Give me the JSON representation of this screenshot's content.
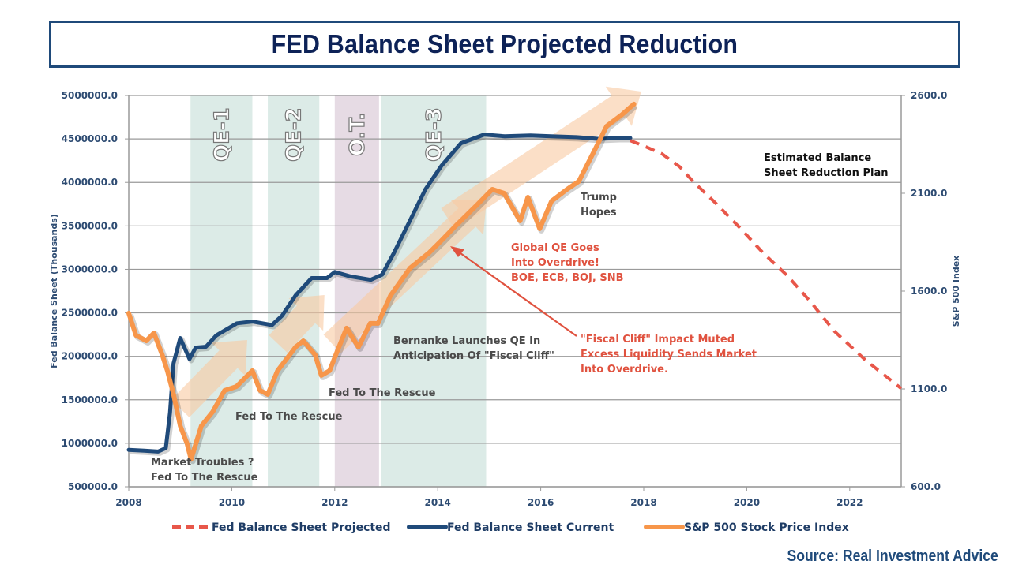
{
  "title": "FED Balance Sheet Projected Reduction",
  "source": "Source: Real Investment Advice",
  "colors": {
    "balance_current": "#1f4a7a",
    "balance_projected": "#e8574a",
    "sp500": "#f7964a",
    "qe_band": "#dcebe7",
    "ot_band": "#e6dbe4",
    "axis_text": "#2d4b72",
    "title_text": "#0d2257",
    "annotation_red": "#e0523f"
  },
  "chart_data": {
    "type": "line",
    "title": "FED Balance Sheet Projected Reduction",
    "xlabel": "",
    "ylabel": "Fed Balance Sheet (Thousands)",
    "y2label": "S&P 500 Index",
    "xlim": [
      2008,
      2023
    ],
    "ylim": [
      500000,
      5000000
    ],
    "y2lim": [
      600,
      2600
    ],
    "grid": true,
    "legend_position": "bottom",
    "x_ticks": [
      "2008",
      "2010",
      "2012",
      "2014",
      "2016",
      "2018",
      "2020",
      "2022"
    ],
    "x_tick_values": [
      2008,
      2010,
      2012,
      2014,
      2016,
      2018,
      2020,
      2022
    ],
    "y_ticks": [
      "5000000.0",
      "4500000.0",
      "4000000.0",
      "3500000.0",
      "3000000.0",
      "2500000.0",
      "2000000.0",
      "1500000.0",
      "1000000.0",
      "500000.0"
    ],
    "y_tick_values": [
      5000000,
      4500000,
      4000000,
      3500000,
      3000000,
      2500000,
      2000000,
      1500000,
      1000000,
      500000
    ],
    "y2_ticks": [
      "2600.0",
      "2100.0",
      "1600.0",
      "1100.0",
      "600.0"
    ],
    "y2_tick_values": [
      2600,
      2100,
      1600,
      1100,
      600
    ],
    "bands": [
      {
        "label": "QE-1",
        "start": 2009.2,
        "end": 2010.4,
        "kind": "qe"
      },
      {
        "label": "QE-2",
        "start": 2010.7,
        "end": 2011.7,
        "kind": "qe"
      },
      {
        "label": "O.T.",
        "start": 2012.0,
        "end": 2012.86,
        "kind": "ot"
      },
      {
        "label": "QE-3",
        "start": 2012.9,
        "end": 2014.94,
        "kind": "qe"
      }
    ],
    "series": [
      {
        "name": "Fed Balance Sheet Projected",
        "axis": "left",
        "style": "dashed",
        "x": [
          2017.74,
          2018.0,
          2018.35,
          2018.7,
          2018.96,
          2019.4,
          2019.88,
          2020.3,
          2020.8,
          2021.25,
          2021.7,
          2022.3,
          2023.0
        ],
        "y": [
          4480000,
          4420000,
          4330000,
          4180000,
          4010000,
          3760000,
          3470000,
          3200000,
          2920000,
          2620000,
          2290000,
          1960000,
          1630000
        ]
      },
      {
        "name": "Fed Balance Sheet Current",
        "axis": "left",
        "style": "solid",
        "x": [
          2008.0,
          2008.3,
          2008.57,
          2008.72,
          2008.8,
          2008.87,
          2009.0,
          2009.18,
          2009.3,
          2009.5,
          2009.7,
          2010.1,
          2010.4,
          2010.78,
          2010.98,
          2011.24,
          2011.55,
          2011.85,
          2012.0,
          2012.3,
          2012.7,
          2012.92,
          2013.15,
          2013.46,
          2013.76,
          2014.07,
          2014.45,
          2014.9,
          2015.3,
          2015.8,
          2016.2,
          2016.7,
          2017.13,
          2017.5,
          2017.74
        ],
        "y": [
          925000,
          915000,
          905000,
          945000,
          1350000,
          1920000,
          2210000,
          1970000,
          2100000,
          2110000,
          2240000,
          2380000,
          2400000,
          2360000,
          2470000,
          2700000,
          2900000,
          2900000,
          2970000,
          2920000,
          2880000,
          2940000,
          3190000,
          3560000,
          3920000,
          4190000,
          4450000,
          4550000,
          4530000,
          4540000,
          4530000,
          4520000,
          4500000,
          4510000,
          4510000
        ]
      },
      {
        "name": "S&P 500 Stock Price Index",
        "axis": "right",
        "style": "solid",
        "x": [
          2008.0,
          2008.14,
          2008.34,
          2008.49,
          2008.65,
          2008.75,
          2008.87,
          2009.0,
          2009.13,
          2009.21,
          2009.41,
          2009.63,
          2009.86,
          2010.09,
          2010.4,
          2010.55,
          2010.7,
          2010.89,
          2011.24,
          2011.39,
          2011.62,
          2011.74,
          2011.9,
          2012.05,
          2012.23,
          2012.46,
          2012.69,
          2012.84,
          2013.08,
          2013.46,
          2013.84,
          2014.07,
          2014.37,
          2014.76,
          2015.06,
          2015.29,
          2015.6,
          2015.75,
          2015.98,
          2016.21,
          2016.51,
          2016.74,
          2017.05,
          2017.28,
          2017.58,
          2017.81
        ],
        "y": [
          1487,
          1374,
          1346,
          1386,
          1274,
          1193,
          1072,
          911,
          822,
          740,
          911,
          983,
          1092,
          1112,
          1193,
          1092,
          1072,
          1193,
          1314,
          1346,
          1274,
          1169,
          1193,
          1294,
          1411,
          1314,
          1435,
          1435,
          1576,
          1717,
          1798,
          1858,
          1939,
          2040,
          2120,
          2100,
          1959,
          2080,
          1919,
          2060,
          2120,
          2161,
          2322,
          2443,
          2503,
          2556
        ]
      }
    ],
    "annotations": [
      {
        "id": "market-troubles",
        "lines": [
          "Market Troubles ?",
          "Fed To The Rescue"
        ],
        "color": "dark"
      },
      {
        "id": "fed-rescue-2",
        "lines": [
          "Fed To The Rescue"
        ],
        "color": "dark"
      },
      {
        "id": "fed-rescue-3",
        "lines": [
          "Fed To The Rescue"
        ],
        "color": "dark"
      },
      {
        "id": "bernanke",
        "lines": [
          "Bernanke Launches QE In",
          "Anticipation Of \"Fiscal Cliff\""
        ],
        "color": "dark"
      },
      {
        "id": "global-qe",
        "lines": [
          "Global QE Goes",
          "Into Overdrive!",
          "BOE, ECB, BOJ, SNB"
        ],
        "color": "red"
      },
      {
        "id": "fiscal-cliff",
        "lines": [
          "\"Fiscal Cliff\" Impact Muted",
          "Excess Liquidity Sends Market",
          "Into Overdrive."
        ],
        "color": "red"
      },
      {
        "id": "trump-hopes",
        "lines": [
          "Trump",
          "Hopes"
        ],
        "color": "dark"
      },
      {
        "id": "reduction-plan",
        "lines": [
          "Estimated Balance",
          "Sheet Reduction Plan"
        ],
        "color": "black"
      }
    ],
    "legend": [
      {
        "label": "Fed Balance Sheet Projected",
        "style": "dashed"
      },
      {
        "label": "Fed Balance Sheet Current",
        "style": "solid-navy"
      },
      {
        "label": "S&P 500 Stock Price Index",
        "style": "solid-orange"
      }
    ]
  }
}
